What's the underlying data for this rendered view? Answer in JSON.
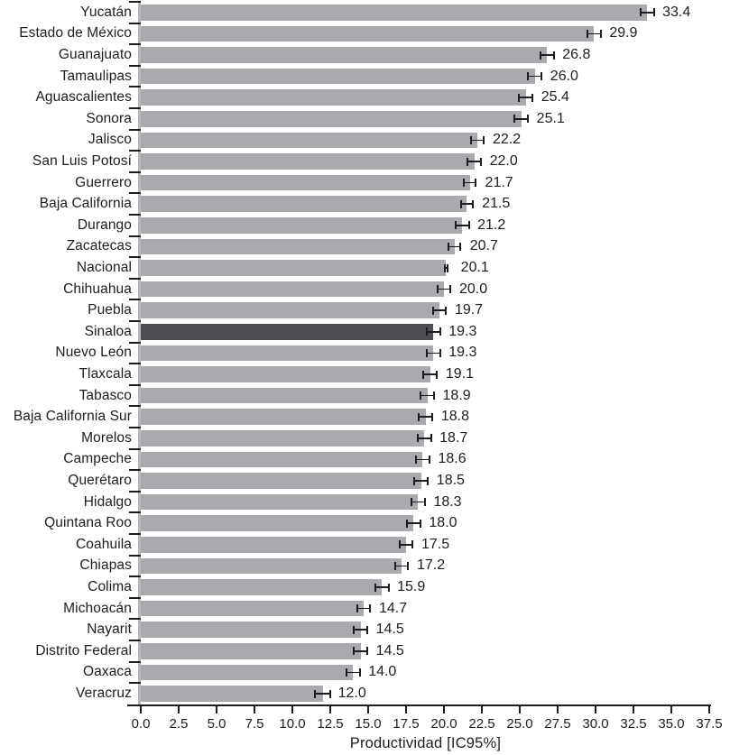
{
  "chart_data": {
    "type": "bar",
    "orientation": "horizontal",
    "title": "",
    "xlabel": "Productividad [IC95%]",
    "xlim": [
      0,
      37.5
    ],
    "x_tick_labels": [
      "0.0",
      "2.5",
      "5.0",
      "7.5",
      "10.0",
      "12.5",
      "15.0",
      "17.5",
      "20.0",
      "22.5",
      "25.0",
      "27.5",
      "30.0",
      "32.5",
      "35.0",
      "37.5"
    ],
    "grid": false,
    "legend": "none",
    "error_bars": "95% confidence interval, capped both ends, centered on bar end",
    "highlight_category": "Sinaloa",
    "categories": [
      "Yucatán",
      "Estado de México",
      "Guanajuato",
      "Tamaulipas",
      "Aguascalientes",
      "Sonora",
      "Jalisco",
      "San Luis Potosí",
      "Guerrero",
      "Baja California",
      "Durango",
      "Zacatecas",
      "Nacional",
      "Chihuahua",
      "Puebla",
      "Sinaloa",
      "Nuevo León",
      "Tlaxcala",
      "Tabasco",
      "Baja California Sur",
      "Morelos",
      "Campeche",
      "Querétaro",
      "Hidalgo",
      "Quintana Roo",
      "Coahuila",
      "Chiapas",
      "Colima",
      "Michoacán",
      "Nayarit",
      "Distrito Federal",
      "Oaxaca",
      "Veracruz"
    ],
    "values": [
      33.4,
      29.9,
      26.8,
      26.0,
      25.4,
      25.1,
      22.2,
      22.0,
      21.7,
      21.5,
      21.2,
      20.7,
      20.1,
      20.0,
      19.7,
      19.3,
      19.3,
      19.1,
      18.9,
      18.8,
      18.7,
      18.6,
      18.5,
      18.3,
      18.0,
      17.5,
      17.2,
      15.9,
      14.7,
      14.5,
      14.5,
      14.0,
      12.0
    ],
    "value_labels": [
      "33.4",
      "29.9",
      "26.8",
      "26.0",
      "25.4",
      "25.1",
      "22.2",
      "22.0",
      "21.7",
      "21.5",
      "21.2",
      "20.7",
      "20.1",
      "20.0",
      "19.7",
      "19.3",
      "19.3",
      "19.1",
      "18.9",
      "18.8",
      "18.7",
      "18.6",
      "18.5",
      "18.3",
      "18.0",
      "17.5",
      "17.2",
      "15.9",
      "14.7",
      "14.5",
      "14.5",
      "14.0",
      "12.0"
    ],
    "ci_half_width": [
      0.5,
      0.5,
      0.5,
      0.5,
      0.5,
      0.5,
      0.5,
      0.5,
      0.45,
      0.45,
      0.5,
      0.45,
      0.1,
      0.45,
      0.45,
      0.5,
      0.5,
      0.5,
      0.5,
      0.5,
      0.5,
      0.5,
      0.5,
      0.5,
      0.5,
      0.5,
      0.5,
      0.5,
      0.5,
      0.5,
      0.5,
      0.5,
      0.55
    ],
    "colors": {
      "bar": "#a8aaad",
      "highlight_bar": "#4d4f52",
      "error_bar": "#1d1d1f",
      "axis": "#1d1d1f",
      "baseline": "#b5b7b9",
      "text": "#1d1d1f",
      "background": "#ffffff"
    }
  }
}
